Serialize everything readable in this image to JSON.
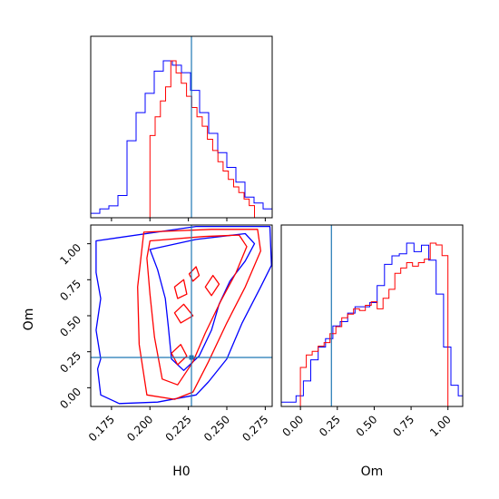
{
  "chart_data": [
    {
      "panel": "H0 marginal",
      "type": "step-histogram",
      "x_param": "H0",
      "xlim": [
        0.1615,
        0.2795
      ],
      "truth": 0.227,
      "series": [
        {
          "color": "#0000ff",
          "bin_edges": [
            0.1615,
            0.1674,
            0.1733,
            0.1792,
            0.1851,
            0.191,
            0.1969,
            0.2028,
            0.2087,
            0.2146,
            0.2205,
            0.2264,
            0.2323,
            0.2382,
            0.2441,
            0.25,
            0.2559,
            0.2618,
            0.2677,
            0.2736,
            0.2795
          ],
          "values": [
            3,
            6,
            8,
            15,
            52,
            71,
            84,
            99,
            106,
            103,
            98,
            86,
            71,
            57,
            44,
            34,
            24,
            14,
            10,
            6
          ]
        },
        {
          "color": "#ff0000",
          "bin_edges": [
            0.2,
            0.2034,
            0.2068,
            0.2102,
            0.2136,
            0.217,
            0.2204,
            0.2238,
            0.2272,
            0.2306,
            0.234,
            0.2374,
            0.2408,
            0.2442,
            0.2476,
            0.251,
            0.2544,
            0.2578,
            0.2612,
            0.2646,
            0.268
          ],
          "values": [
            88,
            108,
            125,
            140,
            168,
            155,
            144,
            130,
            118,
            108,
            98,
            84,
            72,
            60,
            50,
            41,
            33,
            27,
            20,
            13
          ]
        }
      ]
    },
    {
      "panel": "H0 vs Om",
      "type": "contour",
      "x_param": "H0",
      "y_param": "Om",
      "xlim": [
        0.1615,
        0.2795
      ],
      "ylim": [
        -0.13,
        1.13
      ],
      "truth": {
        "x": 0.227,
        "y": 0.21
      },
      "xlabel": "H0",
      "ylabel": "Om",
      "xticks": [
        "0.175",
        "0.200",
        "0.225",
        "0.250",
        "0.275"
      ],
      "yticks": [
        "0.00",
        "0.25",
        "0.50",
        "0.75",
        "1.00"
      ],
      "series": [
        {
          "color": "#0000ff",
          "contours": [
            [
              [
                0.2,
                0.96
              ],
              [
                0.23,
                1.03
              ],
              [
                0.262,
                1.07
              ],
              [
                0.268,
                1.0
              ],
              [
                0.262,
                0.88
              ],
              [
                0.252,
                0.74
              ],
              [
                0.245,
                0.58
              ],
              [
                0.24,
                0.4
              ],
              [
                0.232,
                0.22
              ],
              [
                0.222,
                0.12
              ],
              [
                0.214,
                0.2
              ],
              [
                0.212,
                0.42
              ],
              [
                0.21,
                0.62
              ],
              [
                0.205,
                0.82
              ]
            ],
            [
              [
                0.165,
                1.02
              ],
              [
                0.23,
                1.12
              ],
              [
                0.278,
                1.12
              ],
              [
                0.279,
                0.85
              ],
              [
                0.272,
                0.7
              ],
              [
                0.26,
                0.45
              ],
              [
                0.25,
                0.2
              ],
              [
                0.238,
                0.04
              ],
              [
                0.23,
                -0.05
              ],
              [
                0.205,
                -0.1
              ],
              [
                0.18,
                -0.11
              ],
              [
                0.168,
                -0.05
              ],
              [
                0.166,
                0.13
              ],
              [
                0.168,
                0.2
              ],
              [
                0.165,
                0.4
              ],
              [
                0.168,
                0.62
              ],
              [
                0.165,
                0.8
              ]
            ]
          ]
        },
        {
          "color": "#ff0000",
          "contours": [
            [
              [
                0.2255,
                0.79
              ],
              [
                0.23,
                0.84
              ],
              [
                0.232,
                0.78
              ],
              [
                0.228,
                0.74
              ]
            ],
            [
              [
                0.216,
                0.7
              ],
              [
                0.222,
                0.75
              ],
              [
                0.224,
                0.65
              ],
              [
                0.218,
                0.62
              ]
            ],
            [
              [
                0.236,
                0.7
              ],
              [
                0.241,
                0.78
              ],
              [
                0.245,
                0.72
              ],
              [
                0.24,
                0.64
              ]
            ],
            [
              [
                0.216,
                0.52
              ],
              [
                0.222,
                0.58
              ],
              [
                0.228,
                0.5
              ],
              [
                0.22,
                0.45
              ]
            ],
            [
              [
                0.214,
                0.24
              ],
              [
                0.22,
                0.3
              ],
              [
                0.224,
                0.22
              ],
              [
                0.218,
                0.16
              ]
            ],
            [
              [
                0.2,
                1.02
              ],
              [
                0.235,
                1.05
              ],
              [
                0.258,
                1.06
              ],
              [
                0.263,
                0.98
              ],
              [
                0.256,
                0.8
              ],
              [
                0.246,
                0.6
              ],
              [
                0.236,
                0.38
              ],
              [
                0.228,
                0.18
              ],
              [
                0.218,
                0.02
              ],
              [
                0.208,
                0.06
              ],
              [
                0.203,
                0.35
              ],
              [
                0.2,
                0.65
              ],
              [
                0.198,
                0.9
              ]
            ],
            [
              [
                0.196,
                1.08
              ],
              [
                0.24,
                1.1
              ],
              [
                0.27,
                1.1
              ],
              [
                0.272,
                0.95
              ],
              [
                0.262,
                0.7
              ],
              [
                0.25,
                0.45
              ],
              [
                0.238,
                0.18
              ],
              [
                0.228,
                -0.03
              ],
              [
                0.216,
                -0.08
              ],
              [
                0.198,
                -0.05
              ],
              [
                0.193,
                0.3
              ],
              [
                0.192,
                0.7
              ]
            ]
          ]
        }
      ]
    },
    {
      "panel": "Om marginal",
      "type": "step-histogram",
      "x_param": "Om",
      "xlim": [
        -0.13,
        1.1
      ],
      "truth": 0.21,
      "xlabel": "Om",
      "xticks": [
        "0.00",
        "0.25",
        "0.50",
        "0.75",
        "1.00"
      ],
      "series": [
        {
          "color": "#0000ff",
          "bin_edges": [
            -0.13,
            -0.08,
            -0.03,
            0.02,
            0.07,
            0.12,
            0.17,
            0.22,
            0.27,
            0.32,
            0.37,
            0.42,
            0.47,
            0.52,
            0.57,
            0.62,
            0.67,
            0.72,
            0.77,
            0.82,
            0.87,
            0.92,
            0.97,
            1.02,
            1.07,
            1.1
          ],
          "values": [
            2,
            2,
            5,
            12,
            22,
            28,
            32,
            38,
            40,
            44,
            47,
            47,
            49,
            57,
            67,
            71,
            72,
            77,
            73,
            76,
            69,
            53,
            28,
            10,
            5
          ]
        },
        {
          "color": "#ff0000",
          "bin_edges": [
            0.0,
            0.04,
            0.08,
            0.12,
            0.16,
            0.2,
            0.24,
            0.28,
            0.32,
            0.36,
            0.4,
            0.44,
            0.48,
            0.52,
            0.56,
            0.6,
            0.64,
            0.68,
            0.72,
            0.76,
            0.8,
            0.84,
            0.88,
            0.92,
            0.96,
            1.0
          ],
          "values": [
            22,
            29,
            31,
            34,
            36,
            41,
            45,
            50,
            52,
            55,
            54,
            57,
            59,
            55,
            61,
            66,
            75,
            78,
            81,
            79,
            81,
            83,
            92,
            91,
            85
          ]
        }
      ]
    }
  ]
}
